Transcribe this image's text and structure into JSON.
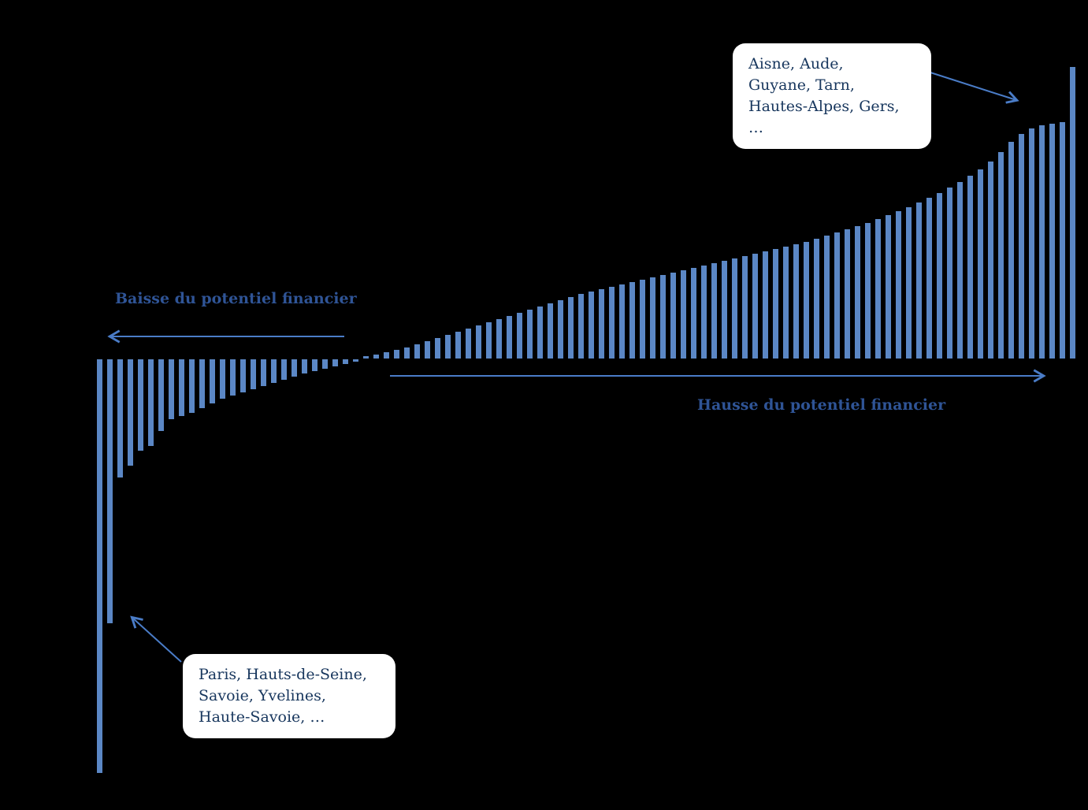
{
  "colors": {
    "background": "#000000",
    "bar": "#5b87c5",
    "arrow": "#4a7cc7",
    "direction_label_text": "#2f5496",
    "callout_background": "#ffffff",
    "callout_text": "#17365d"
  },
  "chart_data": {
    "type": "bar",
    "title": "",
    "xlabel": "",
    "ylabel": "",
    "grid": false,
    "legend": false,
    "axes_tick_labels_visible": false,
    "sorted": "ascending left-to-right",
    "description": "Sorted bar chart of change in financial potential (potentiel financier) by French department; negative bars on the left, positive bars on the right; axes unlabeled (relative pixel units).",
    "n_bars": 96,
    "ylim": [
      -525,
      370
    ],
    "values": [
      -525,
      -335,
      -150,
      -135,
      -116,
      -110,
      -91,
      -76,
      -72,
      -68,
      -62,
      -56,
      -50,
      -46,
      -42,
      -38,
      -34,
      -30,
      -26,
      -22,
      -18,
      -15,
      -12,
      -9,
      -6,
      -3,
      3,
      5,
      8,
      11,
      14,
      18,
      22,
      26,
      30,
      34,
      38,
      42,
      46,
      50,
      54,
      58,
      62,
      66,
      70,
      74,
      78,
      82,
      85,
      88,
      91,
      94,
      97,
      100,
      103,
      106,
      109,
      112,
      115,
      118,
      121,
      124,
      127,
      130,
      133,
      136,
      139,
      142,
      145,
      148,
      152,
      156,
      160,
      164,
      168,
      172,
      177,
      182,
      187,
      192,
      198,
      204,
      210,
      217,
      224,
      232,
      240,
      250,
      262,
      275,
      285,
      292,
      296,
      298,
      300,
      370
    ],
    "annotations": {
      "baisse_label": "Baisse du potentiel financier",
      "hausse_label": "Hausse du potentiel financier",
      "callout_top_right": "Aisne, Aude,\nGuyane, Tarn,\nHautes-Alpes, Gers,\n…",
      "callout_bottom_left": "Paris, Hauts-de-Seine,\nSavoie, Yvelines,\nHaute-Savoie, …"
    }
  }
}
